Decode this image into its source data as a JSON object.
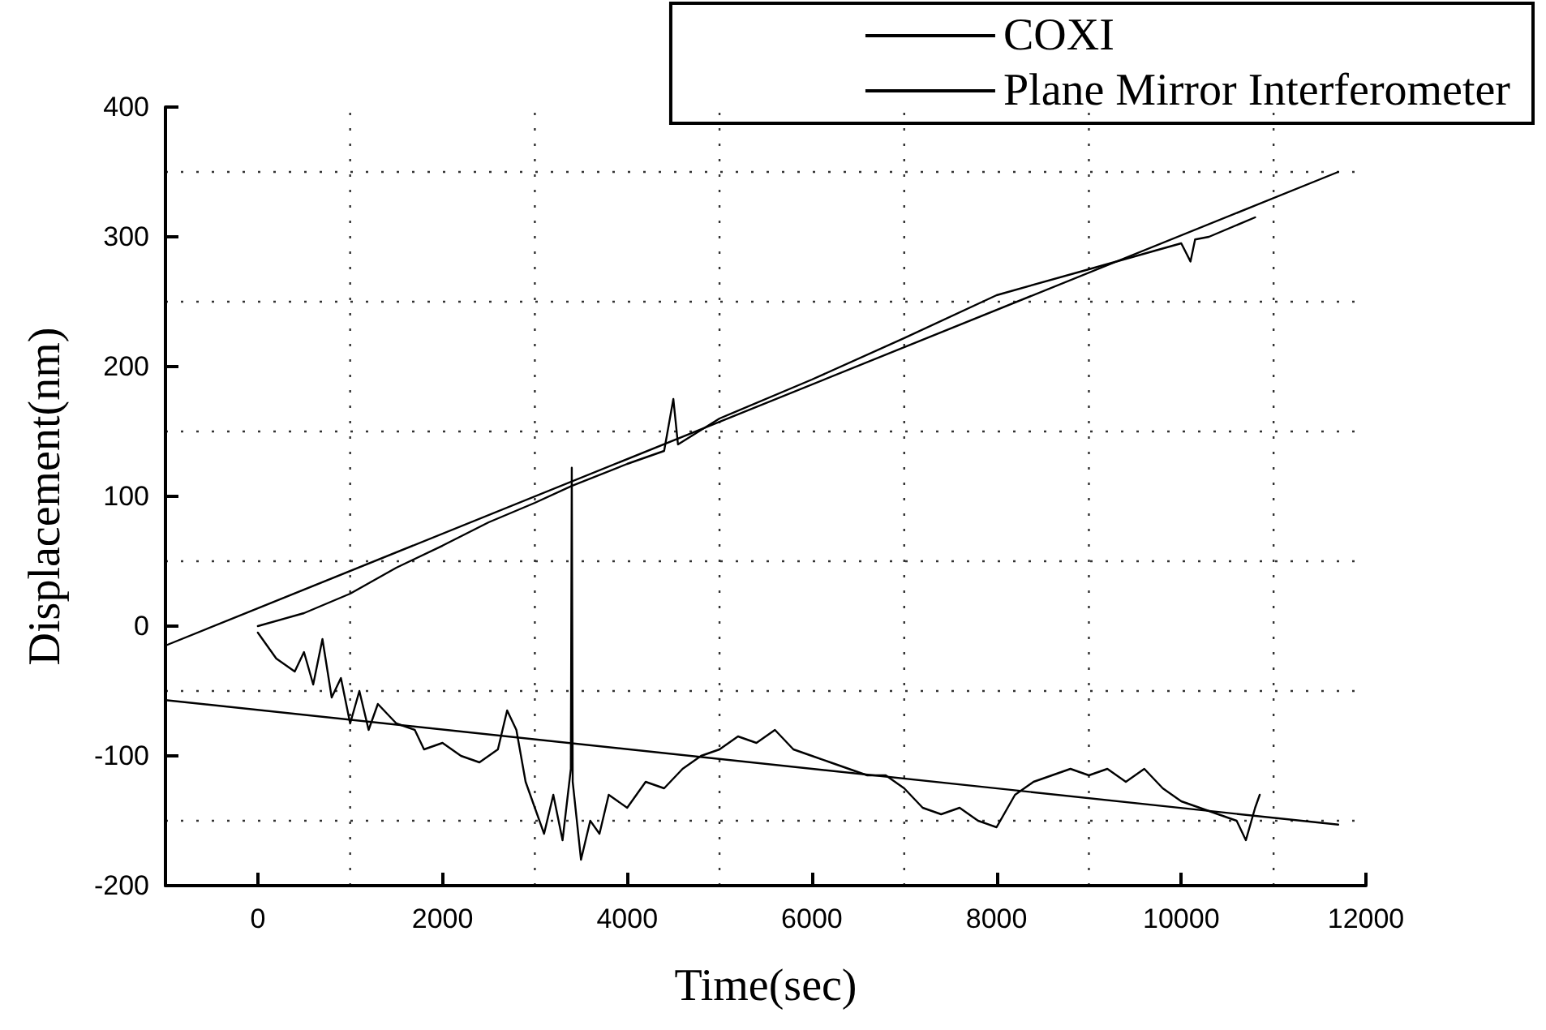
{
  "chart_data": {
    "type": "line",
    "xlabel": "Time(sec)",
    "ylabel": "Displacement(nm)",
    "xlim": [
      -1000,
      12000
    ],
    "xticks": [
      0,
      2000,
      4000,
      6000,
      8000,
      10000,
      12000
    ],
    "ylim": [
      -200,
      400
    ],
    "yticks": [
      -200,
      -100,
      0,
      100,
      200,
      300,
      400
    ],
    "grid": true,
    "legend": "top right",
    "marker": "none",
    "line_style": "solid",
    "series": [
      {
        "name": "COXI",
        "color": "#000000",
        "x": [
          0,
          100,
          200,
          400,
          500,
          600,
          700,
          800,
          900,
          1000,
          1100,
          1200,
          1300,
          1500,
          1700,
          1800,
          2000,
          2200,
          2400,
          2600,
          2700,
          2800,
          2900,
          3000,
          3100,
          3200,
          3300,
          3390,
          3400,
          3410,
          3500,
          3600,
          3700,
          3800,
          4000,
          4200,
          4400,
          4600,
          4800,
          5000,
          5200,
          5400,
          5600,
          5800,
          6000,
          6200,
          6400,
          6600,
          6800,
          7000,
          7200,
          7400,
          7600,
          7800,
          8000,
          8200,
          8400,
          8600,
          8800,
          9000,
          9200,
          9400,
          9600,
          9800,
          10000,
          10200,
          10400,
          10600,
          10700,
          10800,
          10850
        ],
        "values": [
          -5,
          -15,
          -25,
          -35,
          -20,
          -45,
          -10,
          -55,
          -40,
          -75,
          -50,
          -80,
          -60,
          -75,
          -80,
          -95,
          -90,
          -100,
          -105,
          -95,
          -65,
          -80,
          -120,
          -140,
          -160,
          -130,
          -165,
          -110,
          122,
          -120,
          -180,
          -150,
          -160,
          -130,
          -140,
          -120,
          -125,
          -110,
          -100,
          -95,
          -85,
          -90,
          -80,
          -95,
          -100,
          -105,
          -110,
          -115,
          -115,
          -125,
          -140,
          -145,
          -140,
          -150,
          -155,
          -130,
          -120,
          -115,
          -110,
          -115,
          -110,
          -120,
          -110,
          -125,
          -135,
          -140,
          -145,
          -150,
          -165,
          -140,
          -130
        ]
      },
      {
        "name": "Plane Mirror Interferometer",
        "color": "#000000",
        "x": [
          0,
          500,
          1000,
          1500,
          2000,
          2500,
          3000,
          3400,
          4000,
          4400,
          4500,
          4550,
          5000,
          6000,
          7000,
          8000,
          9000,
          10000,
          10100,
          10150,
          10300,
          10800
        ],
        "values": [
          0,
          10,
          25,
          45,
          62,
          80,
          95,
          108,
          125,
          135,
          175,
          140,
          160,
          190,
          222,
          255,
          275,
          295,
          281,
          298,
          300,
          315
        ]
      },
      {
        "color": "#000000",
        "x": [
          -1000,
          11700
        ],
        "values": [
          -15,
          350
        ]
      },
      {
        "color": "#000000",
        "x": [
          -1000,
          11700
        ],
        "values": [
          -57,
          -153
        ]
      }
    ]
  }
}
